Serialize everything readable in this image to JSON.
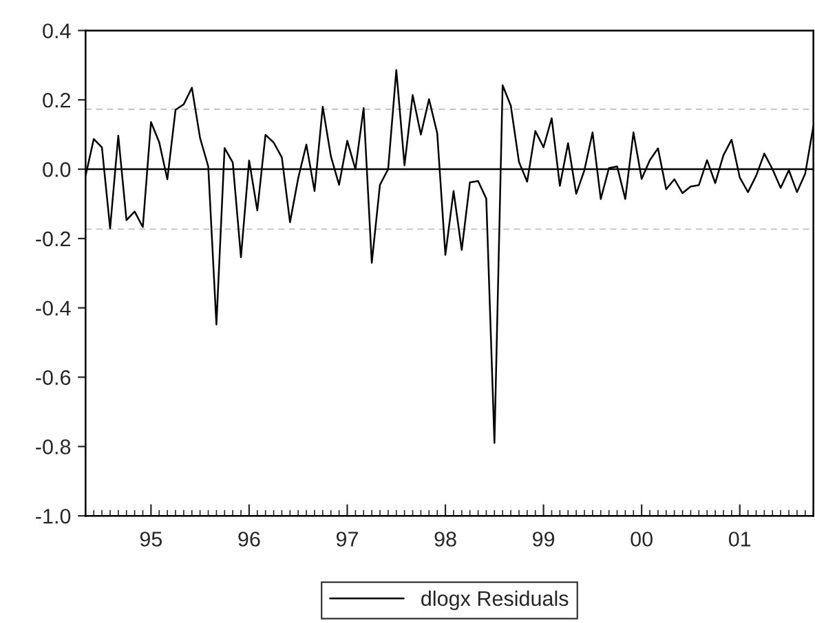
{
  "chart_data": {
    "type": "line",
    "x": [
      "1994-05",
      "1994-06",
      "1994-07",
      "1994-08",
      "1994-09",
      "1994-10",
      "1994-11",
      "1994-12",
      "1995-01",
      "1995-02",
      "1995-03",
      "1995-04",
      "1995-05",
      "1995-06",
      "1995-07",
      "1995-08",
      "1995-09",
      "1995-10",
      "1995-11",
      "1995-12",
      "1996-01",
      "1996-02",
      "1996-03",
      "1996-04",
      "1996-05",
      "1996-06",
      "1996-07",
      "1996-08",
      "1996-09",
      "1996-10",
      "1996-11",
      "1996-12",
      "1997-01",
      "1997-02",
      "1997-03",
      "1997-04",
      "1997-05",
      "1997-06",
      "1997-07",
      "1997-08",
      "1997-09",
      "1997-10",
      "1997-11",
      "1997-12",
      "1998-01",
      "1998-02",
      "1998-03",
      "1998-04",
      "1998-05",
      "1998-06",
      "1998-07",
      "1998-08",
      "1998-09",
      "1998-10",
      "1998-11",
      "1998-12",
      "1999-01",
      "1999-02",
      "1999-03",
      "1999-04",
      "1999-05",
      "1999-06",
      "1999-07",
      "1999-08",
      "1999-09",
      "1999-10",
      "1999-11",
      "1999-12",
      "2000-01",
      "2000-02",
      "2000-03",
      "2000-04",
      "2000-05",
      "2000-06",
      "2000-07",
      "2000-08",
      "2000-09",
      "2000-10",
      "2000-11",
      "2000-12",
      "2001-01",
      "2001-02",
      "2001-03",
      "2001-04",
      "2001-05",
      "2001-06",
      "2001-07",
      "2001-08",
      "2001-09",
      "2001-10"
    ],
    "series": [
      {
        "name": "dlogx Residuals",
        "color": "#000000",
        "values": [
          -0.019,
          0.087,
          0.063,
          -0.171,
          0.097,
          -0.147,
          -0.122,
          -0.167,
          0.136,
          0.078,
          -0.029,
          0.171,
          0.187,
          0.235,
          0.09,
          0.008,
          -0.448,
          0.061,
          0.019,
          -0.254,
          0.025,
          -0.119,
          0.099,
          0.077,
          0.034,
          -0.153,
          -0.026,
          0.071,
          -0.063,
          0.18,
          0.037,
          -0.045,
          0.082,
          0.0,
          0.176,
          -0.27,
          -0.045,
          0.0,
          0.286,
          0.011,
          0.214,
          0.1,
          0.202,
          0.104,
          -0.247,
          -0.063,
          -0.233,
          -0.038,
          -0.034,
          -0.085,
          -0.79,
          0.242,
          0.183,
          0.021,
          -0.036,
          0.11,
          0.063,
          0.147,
          -0.048,
          0.075,
          -0.071,
          -0.003,
          0.106,
          -0.086,
          0.003,
          0.008,
          -0.086,
          0.106,
          -0.028,
          0.026,
          0.06,
          -0.058,
          -0.029,
          -0.069,
          -0.05,
          -0.046,
          0.026,
          -0.04,
          0.04,
          0.085,
          -0.024,
          -0.066,
          -0.019,
          0.045,
          0.0,
          -0.054,
          -0.003,
          -0.066,
          -0.013,
          0.124
        ]
      }
    ],
    "xlim": [
      "1994-05",
      "2001-10"
    ],
    "xticks": [
      {
        "value": "1995-01",
        "label": "95"
      },
      {
        "value": "1996-01",
        "label": "96"
      },
      {
        "value": "1997-01",
        "label": "97"
      },
      {
        "value": "1998-01",
        "label": "98"
      },
      {
        "value": "1999-01",
        "label": "99"
      },
      {
        "value": "2000-01",
        "label": "00"
      },
      {
        "value": "2001-01",
        "label": "01"
      }
    ],
    "ylim": [
      -1.0,
      0.4
    ],
    "yticks": [
      {
        "value": -1,
        "label": "-1.0"
      },
      -0.8,
      -0.6,
      -0.4,
      -0.2,
      {
        "value": 0,
        "label": "0.0"
      },
      0.2,
      0.4
    ],
    "ref_lines": [
      {
        "axis": "y",
        "value": 0.0,
        "color": "#000000",
        "line_style": "solid"
      },
      {
        "axis": "y",
        "value": 0.173,
        "color": "#c8c8c8",
        "line_style": "dashed"
      },
      {
        "axis": "y",
        "value": -0.173,
        "color": "#c8c8c8",
        "line_style": "dashed"
      }
    ],
    "grid": false,
    "legend": "bottom",
    "line_style": "solid",
    "marker": "none"
  }
}
